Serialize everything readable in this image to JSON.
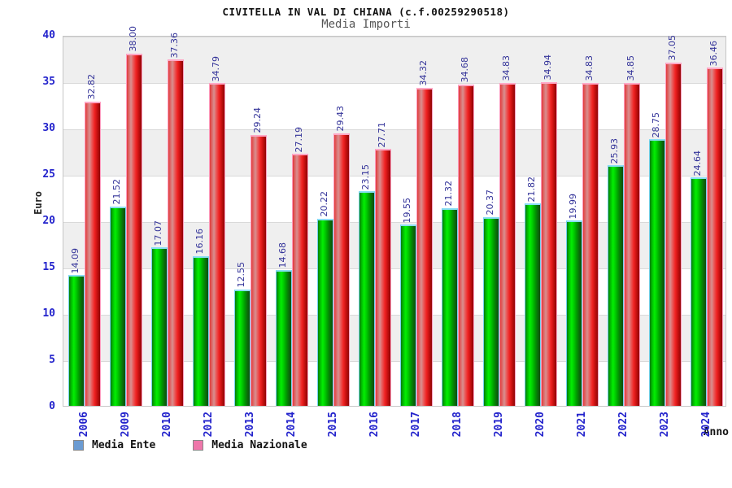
{
  "title": "CIVITELLA IN VAL DI CHIANA (c.f.00259290518)",
  "subtitle": "Media Importi",
  "y_axis_label": "Euro",
  "x_axis_label": "Anno",
  "legend": [
    {
      "label": "Media Ente",
      "color": "#6b9bd2"
    },
    {
      "label": "Media Nazionale",
      "color": "#ee77aa"
    }
  ],
  "colors": {
    "bar_ente": "#00cc00",
    "bar_nazionale": "#ee2222",
    "tick_text": "#2323cc",
    "value_label_text": "#333399",
    "band_gray": "#efefef",
    "band_white": "#ffffff"
  },
  "chart_data": {
    "type": "bar",
    "title": "CIVITELLA IN VAL DI CHIANA (c.f.00259290518)",
    "subtitle": "Media Importi",
    "xlabel": "Anno",
    "ylabel": "Euro",
    "ylim": [
      0,
      40
    ],
    "yticks": [
      0,
      5,
      10,
      15,
      20,
      25,
      30,
      35,
      40
    ],
    "grid": "horizontal-bands",
    "legend_position": "bottom-left",
    "categories": [
      "2006",
      "2009",
      "2010",
      "2012",
      "2013",
      "2014",
      "2015",
      "2016",
      "2017",
      "2018",
      "2019",
      "2020",
      "2021",
      "2022",
      "2023",
      "2024"
    ],
    "series": [
      {
        "name": "Media Ente",
        "values": [
          14.09,
          21.52,
          17.07,
          16.16,
          12.55,
          14.68,
          20.22,
          23.15,
          19.55,
          21.32,
          20.37,
          21.82,
          19.99,
          25.93,
          28.75,
          24.64
        ]
      },
      {
        "name": "Media Nazionale",
        "values": [
          32.82,
          38.0,
          37.36,
          34.79,
          29.24,
          27.19,
          29.43,
          27.71,
          34.32,
          34.68,
          34.83,
          34.94,
          34.83,
          34.85,
          37.05,
          36.46
        ]
      }
    ]
  }
}
